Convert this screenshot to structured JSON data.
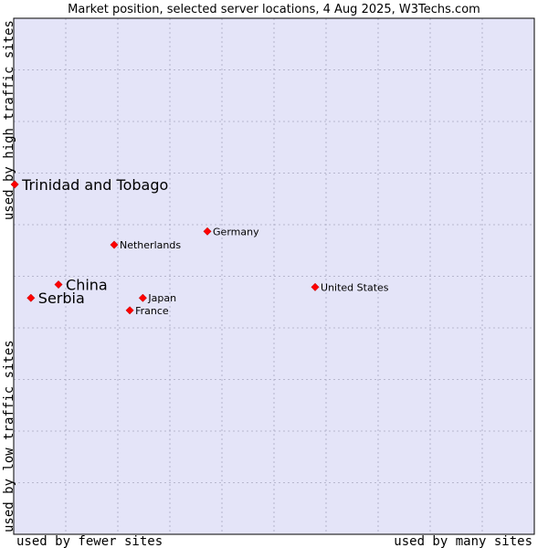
{
  "chart_data": {
    "type": "scatter",
    "title": "Market position, selected server locations, 4 Aug 2025, W3Techs.com",
    "xlabel_left": "used by fewer sites",
    "xlabel_right": "used by many sites",
    "ylabel_top": "used by high traffic sites",
    "ylabel_bottom": "used by low traffic sites",
    "xlim": [
      0,
      100
    ],
    "ylim": [
      0,
      100
    ],
    "grid": true,
    "colors": {
      "plot_background": "#e4e4f8",
      "grid": "#a8a8c0",
      "border": "#000000",
      "marker": "#ff0000"
    },
    "points": [
      {
        "name": "Trinidad and Tobago",
        "x": 0.2,
        "y": 67.8,
        "size": "large"
      },
      {
        "name": "Germany",
        "x": 37.2,
        "y": 58.7,
        "size": "small"
      },
      {
        "name": "Netherlands",
        "x": 19.3,
        "y": 56.1,
        "size": "small"
      },
      {
        "name": "China",
        "x": 8.6,
        "y": 48.4,
        "size": "large"
      },
      {
        "name": "United States",
        "x": 57.9,
        "y": 47.9,
        "size": "small"
      },
      {
        "name": "Serbia",
        "x": 3.3,
        "y": 45.8,
        "size": "large"
      },
      {
        "name": "Japan",
        "x": 24.8,
        "y": 45.8,
        "size": "small"
      },
      {
        "name": "France",
        "x": 22.3,
        "y": 43.4,
        "size": "small"
      }
    ]
  }
}
